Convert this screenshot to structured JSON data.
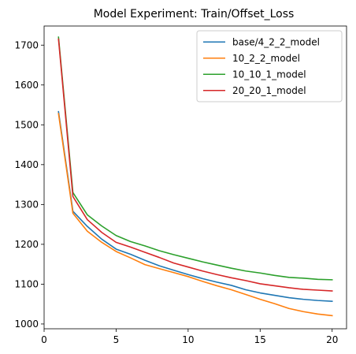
{
  "chart_data": {
    "type": "line",
    "title": "Model Experiment: Train/Offset_Loss",
    "xlabel": "",
    "ylabel": "",
    "xlim": [
      0,
      21
    ],
    "ylim": [
      988,
      1748
    ],
    "xticks": [
      0,
      5,
      10,
      15,
      20
    ],
    "yticks": [
      1000,
      1100,
      1200,
      1300,
      1400,
      1500,
      1600,
      1700
    ],
    "grid": false,
    "legend_position": "top-right",
    "x": [
      1,
      2,
      3,
      4,
      5,
      6,
      7,
      8,
      9,
      10,
      11,
      12,
      13,
      14,
      15,
      16,
      17,
      18,
      19,
      20
    ],
    "series": [
      {
        "name": "base/4_2_2_model",
        "color": "#1f77b4",
        "values": [
          1533,
          1283,
          1245,
          1213,
          1188,
          1175,
          1160,
          1146,
          1135,
          1124,
          1114,
          1105,
          1097,
          1086,
          1078,
          1072,
          1066,
          1062,
          1059,
          1057
        ]
      },
      {
        "name": "10_2_2_model",
        "color": "#ff7f0e",
        "values": [
          1528,
          1278,
          1233,
          1205,
          1182,
          1166,
          1149,
          1139,
          1129,
          1119,
          1107,
          1096,
          1086,
          1074,
          1062,
          1051,
          1039,
          1031,
          1025,
          1021
        ]
      },
      {
        "name": "10_10_1_model",
        "color": "#2ca02c",
        "values": [
          1720,
          1330,
          1274,
          1246,
          1222,
          1207,
          1196,
          1184,
          1174,
          1165,
          1156,
          1148,
          1140,
          1133,
          1128,
          1122,
          1117,
          1115,
          1112,
          1111
        ]
      },
      {
        "name": "20_20_1_model",
        "color": "#d62728",
        "values": [
          1715,
          1320,
          1262,
          1230,
          1205,
          1193,
          1180,
          1167,
          1153,
          1143,
          1133,
          1124,
          1116,
          1109,
          1101,
          1096,
          1091,
          1087,
          1085,
          1083
        ]
      }
    ]
  }
}
